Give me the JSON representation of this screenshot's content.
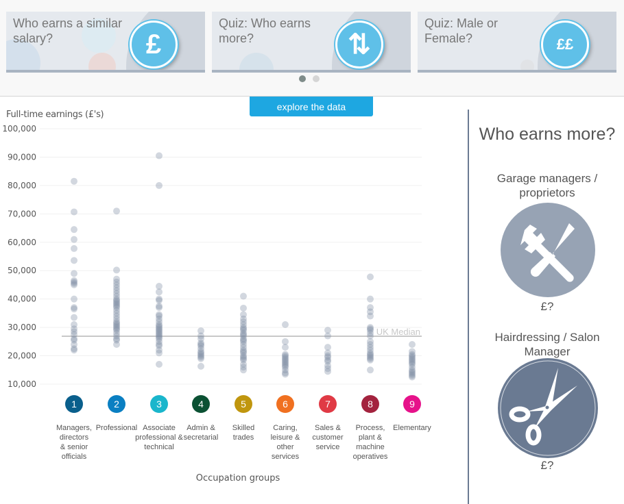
{
  "carousel": {
    "cards": [
      {
        "title": "Who earns a similar salary?",
        "icon": "pound-coin-icon",
        "glyph": "£"
      },
      {
        "title": "Quiz: Who earns more?",
        "icon": "up-down-arrows-icon",
        "glyph": "⇅"
      },
      {
        "title": "Quiz: Male or Female?",
        "icon": "two-pounds-coin-icon",
        "glyph": "££"
      }
    ],
    "pages": 2,
    "active_page": 1
  },
  "explore_button": "explore the data",
  "chart_data": {
    "type": "scatter",
    "ylabel": "Full-time earnings (£'s)",
    "xlabel": "Occupation groups",
    "ylim": [
      10000,
      100000
    ],
    "yticks": [
      "10,000",
      "20,000",
      "30,000",
      "40,000",
      "50,000",
      "60,000",
      "70,000",
      "80,000",
      "90,000",
      "100,000"
    ],
    "median": {
      "label": "UK Median",
      "value": 26900
    },
    "groups": [
      {
        "num": "1",
        "label": "Managers, directors & senior officials",
        "color": "#0a5f8c",
        "values": [
          81500,
          70700,
          64500,
          61000,
          57800,
          53600,
          49000,
          46500,
          46000,
          45500,
          45000,
          40000,
          37000,
          36500,
          33500,
          31000,
          29500,
          28500,
          27500,
          26000,
          25500,
          24000,
          22500,
          22000
        ]
      },
      {
        "num": "2",
        "label": "Professional",
        "color": "#0a7fc2",
        "values": [
          71000,
          50200,
          47000,
          46000,
          45000,
          44000,
          43000,
          42000,
          41000,
          40000,
          39500,
          39000,
          38500,
          38000,
          37500,
          37000,
          36000,
          35000,
          34000,
          33000,
          32000,
          31500,
          31000,
          30500,
          30000,
          29500,
          29000,
          28000,
          27000,
          26000,
          25500,
          24000
        ]
      },
      {
        "num": "3",
        "label": "Associate professional & technical",
        "color": "#1ab6cc",
        "values": [
          90500,
          80000,
          44500,
          42500,
          40000,
          39500,
          37500,
          37000,
          34500,
          34000,
          33000,
          32000,
          31000,
          30500,
          30000,
          29500,
          29000,
          28500,
          28000,
          27500,
          27000,
          26500,
          26000,
          25000,
          24000,
          23500,
          22000,
          21000,
          17000
        ]
      },
      {
        "num": "4",
        "label": "Admin & secretarial",
        "color": "#0b5133",
        "values": [
          28800,
          27000,
          26000,
          24500,
          24000,
          23500,
          22500,
          21500,
          21000,
          20500,
          20000,
          19500,
          19000,
          16300
        ]
      },
      {
        "num": "5",
        "label": "Skilled trades",
        "color": "#c0960e",
        "values": [
          41000,
          36800,
          34500,
          33000,
          32000,
          31000,
          30000,
          29500,
          29000,
          28000,
          27500,
          27000,
          26000,
          25500,
          25000,
          24000,
          23000,
          22000,
          21500,
          21000,
          20000,
          19500,
          19000,
          18500,
          17000,
          16000,
          15000
        ]
      },
      {
        "num": "6",
        "label": "Caring, leisure & other services",
        "color": "#f07020",
        "values": [
          31000,
          25000,
          23000,
          20500,
          20000,
          19500,
          19000,
          18500,
          18000,
          17500,
          17000,
          16500,
          16000,
          15000,
          14000,
          13500
        ]
      },
      {
        "num": "7",
        "label": "Sales & customer service",
        "color": "#e03a45",
        "values": [
          29000,
          27000,
          23000,
          21000,
          20000,
          19500,
          18500,
          18000,
          16500,
          15500,
          14500
        ]
      },
      {
        "num": "8",
        "label": "Process, plant & machine operatives",
        "color": "#a3233e",
        "values": [
          47800,
          40000,
          37000,
          35500,
          34000,
          30000,
          29500,
          29000,
          28000,
          27000,
          25000,
          24000,
          23000,
          22000,
          21000,
          20500,
          20000,
          19500,
          19000,
          18500,
          15000
        ]
      },
      {
        "num": "9",
        "label": "Elementary",
        "color": "#e6128a",
        "values": [
          24000,
          21500,
          20500,
          20000,
          19500,
          19000,
          18500,
          18000,
          17500,
          17000,
          16000,
          15000,
          14500,
          14000,
          13500,
          13000,
          12500
        ]
      }
    ]
  },
  "panel": {
    "title": "Who earns more?",
    "options": [
      {
        "name": "Garage managers / proprietors",
        "icon": "wrench-screwdriver-icon",
        "pay": "£?",
        "color": "#97a3b4"
      },
      {
        "name": "Hairdressing / Salon Manager",
        "icon": "scissors-icon",
        "pay": "£?",
        "color": "#6a7a92"
      }
    ]
  }
}
